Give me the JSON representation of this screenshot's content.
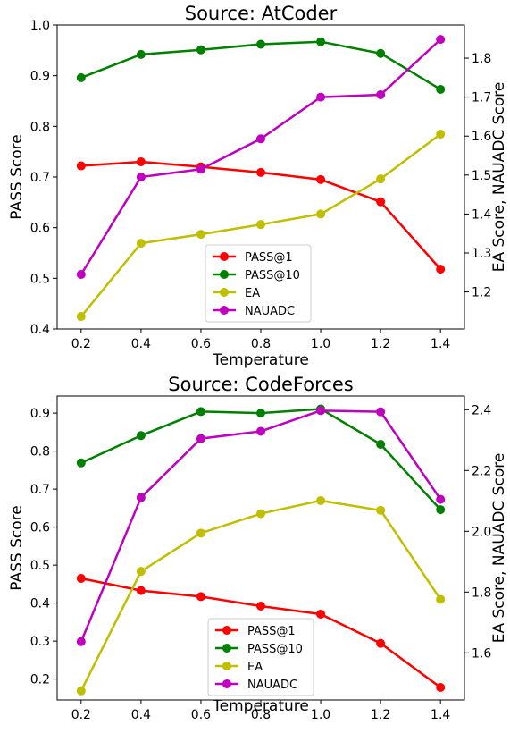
{
  "chart_data": [
    {
      "type": "line",
      "title": "Source: AtCoder",
      "xlabel": "Temperature",
      "ylabel_left": "PASS Score",
      "ylabel_right": "EA Score, NAUADC Score",
      "x": [
        0.2,
        0.4,
        0.6,
        0.8,
        1.0,
        1.2,
        1.4
      ],
      "x_ticks": [
        "0.2",
        "0.4",
        "0.6",
        "0.8",
        "1.0",
        "1.2",
        "1.4"
      ],
      "xlim": [
        0.12,
        1.48
      ],
      "ylim_left": [
        0.4,
        1.0
      ],
      "y_ticks_left": [
        "0.4",
        "0.5",
        "0.6",
        "0.7",
        "0.8",
        "0.9",
        "1.0"
      ],
      "ylim_right": [
        1.105,
        1.885
      ],
      "y_ticks_right": [
        "1.2",
        "1.3",
        "1.4",
        "1.5",
        "1.6",
        "1.7",
        "1.8"
      ],
      "legend_position": "lower-center",
      "grid": false,
      "series": [
        {
          "name": "PASS@1",
          "axis": "left",
          "color": "#ff0000",
          "values": [
            0.722,
            0.73,
            0.72,
            0.709,
            0.695,
            0.651,
            0.518
          ]
        },
        {
          "name": "PASS@10",
          "axis": "left",
          "color": "#008000",
          "values": [
            0.896,
            0.942,
            0.951,
            0.962,
            0.967,
            0.944,
            0.873
          ]
        },
        {
          "name": "EA",
          "axis": "right",
          "color": "#bfbf00",
          "values": [
            1.137,
            1.325,
            1.348,
            1.373,
            1.4,
            1.49,
            1.605
          ]
        },
        {
          "name": "NAUADC",
          "axis": "right",
          "color": "#bf00bf",
          "values": [
            1.245,
            1.495,
            1.515,
            1.593,
            1.7,
            1.706,
            1.848
          ]
        }
      ]
    },
    {
      "type": "line",
      "title": "Source: CodeForces",
      "xlabel": "Temperature",
      "ylabel_left": "PASS Score",
      "ylabel_right": "EA Score, NAUADC Score",
      "x": [
        0.2,
        0.4,
        0.6,
        0.8,
        1.0,
        1.2,
        1.4
      ],
      "x_ticks": [
        "0.2",
        "0.4",
        "0.6",
        "0.8",
        "1.0",
        "1.2",
        "1.4"
      ],
      "xlim": [
        0.12,
        1.48
      ],
      "ylim_left": [
        0.145,
        0.945
      ],
      "y_ticks_left": [
        "0.2",
        "0.3",
        "0.4",
        "0.5",
        "0.6",
        "0.7",
        "0.8",
        "0.9"
      ],
      "ylim_right": [
        1.445,
        2.445
      ],
      "y_ticks_right": [
        "1.6",
        "1.8",
        "2.0",
        "2.2",
        "2.4"
      ],
      "legend_position": "lower-center",
      "grid": false,
      "series": [
        {
          "name": "PASS@1",
          "axis": "left",
          "color": "#ff0000",
          "values": [
            0.465,
            0.433,
            0.417,
            0.392,
            0.371,
            0.294,
            0.178
          ]
        },
        {
          "name": "PASS@10",
          "axis": "left",
          "color": "#008000",
          "values": [
            0.769,
            0.841,
            0.904,
            0.9,
            0.911,
            0.818,
            0.646
          ]
        },
        {
          "name": "EA",
          "axis": "right",
          "color": "#bfbf00",
          "values": [
            1.475,
            1.868,
            1.994,
            2.058,
            2.101,
            2.069,
            1.776
          ]
        },
        {
          "name": "NAUADC",
          "axis": "right",
          "color": "#bf00bf",
          "values": [
            1.637,
            2.111,
            2.305,
            2.329,
            2.397,
            2.393,
            2.105
          ]
        }
      ]
    }
  ]
}
